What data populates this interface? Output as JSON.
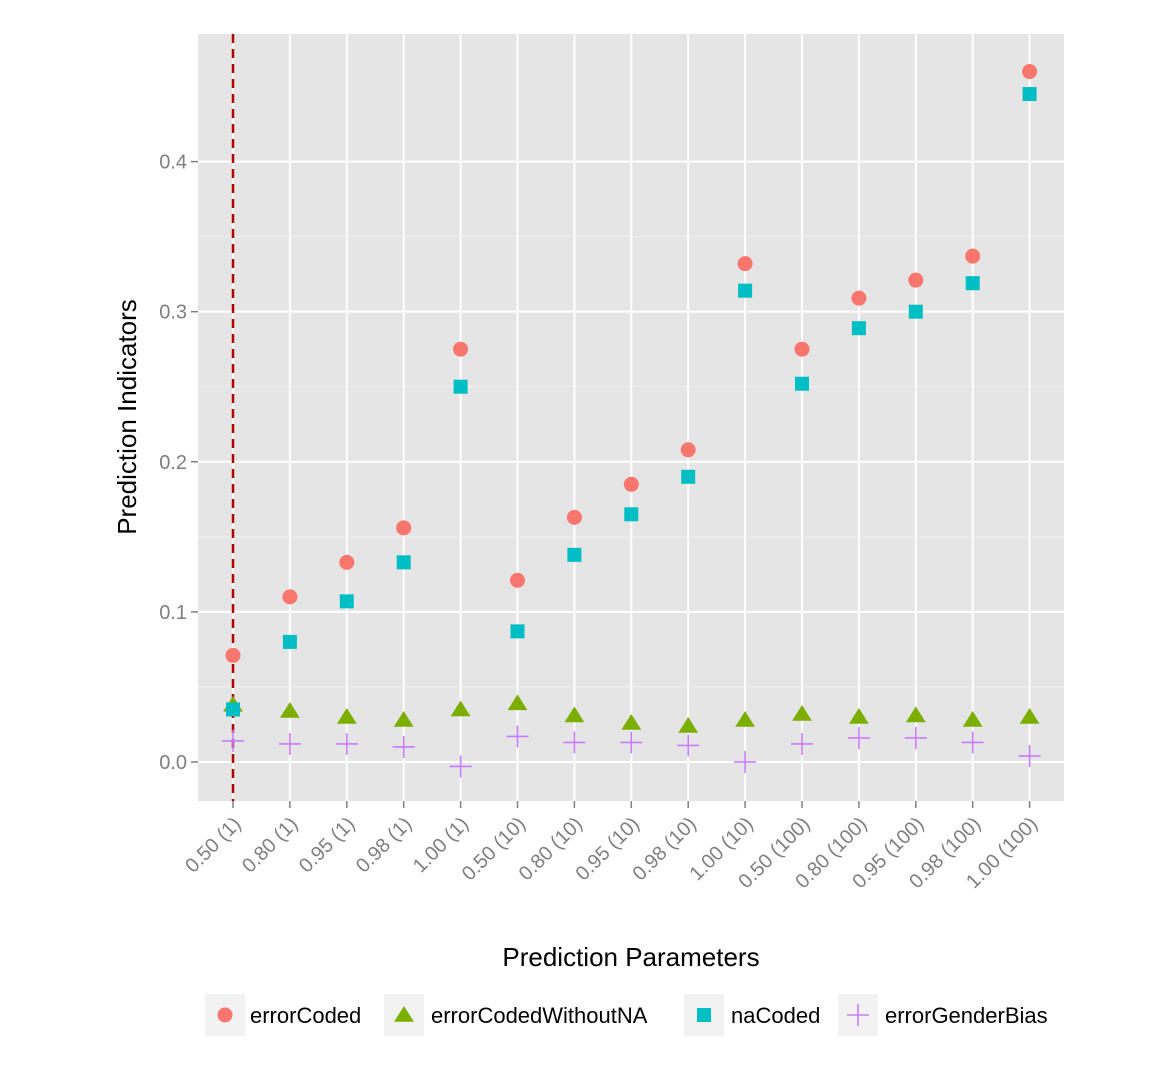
{
  "chart_data": {
    "type": "scatter",
    "xlabel": "Prediction Parameters",
    "ylabel": "Prediction Indicators",
    "categories": [
      "0.50 (1)",
      "0.80 (1)",
      "0.95 (1)",
      "0.98 (1)",
      "1.00 (1)",
      "0.50 (10)",
      "0.80 (10)",
      "0.95 (10)",
      "0.98 (10)",
      "1.00 (10)",
      "0.50 (100)",
      "0.80 (100)",
      "0.95 (100)",
      "0.98 (100)",
      "1.00 (100)"
    ],
    "ylim": [
      -0.026,
      0.485
    ],
    "yticks": [
      0.0,
      0.1,
      0.2,
      0.3,
      0.4
    ],
    "ytick_labels": [
      "0.0",
      "0.1",
      "0.2",
      "0.3",
      "0.4"
    ],
    "grid": true,
    "legend_position": "bottom",
    "reference_line": {
      "category": "0.50 (1)",
      "style": "dashed",
      "color": "#b30000"
    },
    "series": [
      {
        "name": "errorCoded",
        "marker": "circle",
        "color": "#f8766d",
        "values": [
          0.071,
          0.11,
          0.133,
          0.156,
          0.275,
          0.121,
          0.163,
          0.185,
          0.208,
          0.332,
          0.275,
          0.309,
          0.321,
          0.337,
          0.46
        ]
      },
      {
        "name": "errorCodedWithoutNA",
        "marker": "triangle",
        "color": "#7cae00",
        "values": [
          0.038,
          0.034,
          0.03,
          0.028,
          0.035,
          0.039,
          0.031,
          0.026,
          0.024,
          0.028,
          0.032,
          0.03,
          0.031,
          0.028,
          0.03
        ]
      },
      {
        "name": "naCoded",
        "marker": "square",
        "color": "#00bfc4",
        "values": [
          0.035,
          0.08,
          0.107,
          0.133,
          0.25,
          0.087,
          0.138,
          0.165,
          0.19,
          0.314,
          0.252,
          0.289,
          0.3,
          0.319,
          0.445
        ]
      },
      {
        "name": "errorGenderBias",
        "marker": "cross",
        "color": "#c77cff",
        "values": [
          0.014,
          0.012,
          0.012,
          0.01,
          -0.003,
          0.017,
          0.013,
          0.013,
          0.011,
          0.0,
          0.012,
          0.016,
          0.016,
          0.013,
          0.004
        ]
      }
    ]
  }
}
